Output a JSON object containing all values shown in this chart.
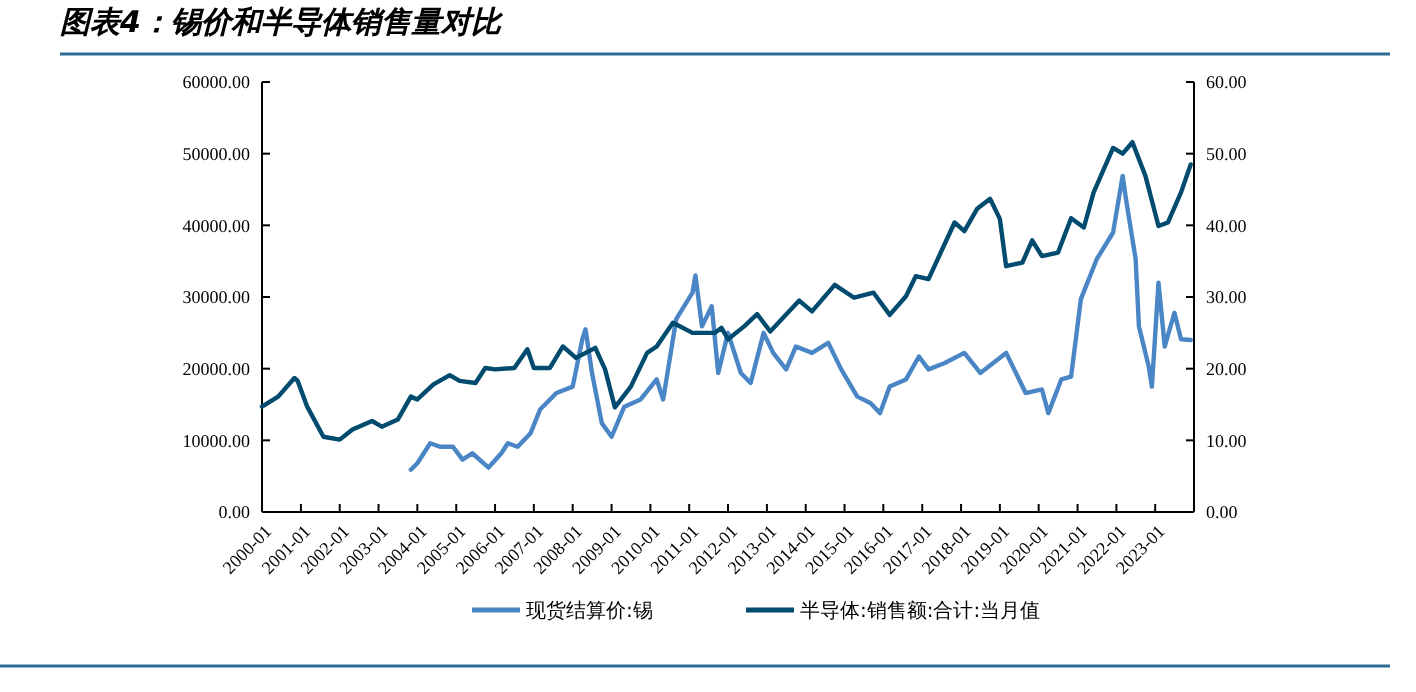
{
  "chart_data": {
    "type": "line",
    "title": "图表4：锡价和半导体销售量对比",
    "xlim": [
      "2000-01",
      "2024-01"
    ],
    "xticks": [
      "2000-01",
      "2001-01",
      "2002-01",
      "2003-01",
      "2004-01",
      "2005-01",
      "2006-01",
      "2007-01",
      "2008-01",
      "2009-01",
      "2010-01",
      "2011-01",
      "2012-01",
      "2013-01",
      "2014-01",
      "2015-01",
      "2016-01",
      "2017-01",
      "2018-01",
      "2019-01",
      "2020-01",
      "2021-01",
      "2022-01",
      "2023-01"
    ],
    "ylim": [
      0,
      60000
    ],
    "yticks": [
      {
        "value": 0,
        "label": "0.00"
      },
      {
        "value": 10000,
        "label": "10000.00"
      },
      {
        "value": 20000,
        "label": "20000.00"
      },
      {
        "value": 30000,
        "label": "30000.00"
      },
      {
        "value": 40000,
        "label": "40000.00"
      },
      {
        "value": 50000,
        "label": "50000.00"
      },
      {
        "value": 60000,
        "label": "60000.00"
      }
    ],
    "y2lim": [
      0,
      60
    ],
    "y2ticks": [
      {
        "value": 0,
        "label": "0.00"
      },
      {
        "value": 10,
        "label": "10.00"
      },
      {
        "value": 20,
        "label": "20.00"
      },
      {
        "value": 30,
        "label": "30.00"
      },
      {
        "value": 40,
        "label": "40.00"
      },
      {
        "value": 50,
        "label": "50.00"
      },
      {
        "value": 60,
        "label": "60.00"
      }
    ],
    "legend": "bottom",
    "grid": false,
    "line_style": "solid",
    "marker": "none",
    "series": [
      {
        "name": "现货结算价:锡",
        "color": "#4a86c5",
        "x": [
          "2003-11",
          "2004-01",
          "2004-05",
          "2004-08",
          "2004-12",
          "2005-03",
          "2005-06",
          "2005-11",
          "2006-03",
          "2006-05",
          "2006-08",
          "2006-12",
          "2007-03",
          "2007-08",
          "2008-01",
          "2008-04",
          "2008-05",
          "2008-07",
          "2008-10",
          "2009-01",
          "2009-05",
          "2009-10",
          "2010-03",
          "2010-05",
          "2010-09",
          "2011-02",
          "2011-03",
          "2011-05",
          "2011-08",
          "2011-10",
          "2012-01",
          "2012-05",
          "2012-08",
          "2012-12",
          "2013-03",
          "2013-07",
          "2013-10",
          "2014-03",
          "2014-08",
          "2014-12",
          "2015-05",
          "2015-09",
          "2015-12",
          "2016-03",
          "2016-08",
          "2016-12",
          "2017-03",
          "2017-08",
          "2018-02",
          "2018-07",
          "2019-03",
          "2019-09",
          "2020-02",
          "2020-04",
          "2020-08",
          "2020-11",
          "2021-02",
          "2021-07",
          "2021-12",
          "2022-03",
          "2022-04",
          "2022-07",
          "2022-08",
          "2022-11",
          "2022-12",
          "2023-02",
          "2023-04",
          "2023-07",
          "2023-09",
          "2023-12"
        ],
        "values": [
          5900,
          6800,
          9600,
          9100,
          9100,
          7300,
          8200,
          6200,
          8200,
          9600,
          9100,
          11000,
          14300,
          16600,
          17500,
          24100,
          25500,
          19400,
          12400,
          10500,
          14700,
          15700,
          18500,
          15700,
          26900,
          30600,
          33000,
          25900,
          28700,
          19400,
          25000,
          19400,
          18000,
          25000,
          22200,
          19900,
          23100,
          22200,
          23600,
          19900,
          16100,
          15200,
          13800,
          17500,
          18500,
          21700,
          19900,
          20800,
          22200,
          19400,
          22200,
          16600,
          17100,
          13800,
          18500,
          18900,
          29700,
          35300,
          39000,
          46900,
          43700,
          35300,
          25900,
          20300,
          17500,
          32000,
          23100,
          27800,
          24100,
          24000
        ]
      },
      {
        "name": "半导体:销售额:合计:当月值",
        "color": "#004b6e",
        "axis": "y2",
        "x": [
          "2000-01",
          "2000-06",
          "2000-11",
          "2000-12",
          "2001-03",
          "2001-08",
          "2002-01",
          "2002-05",
          "2002-11",
          "2003-02",
          "2003-07",
          "2003-11",
          "2004-01",
          "2004-06",
          "2004-11",
          "2005-02",
          "2005-07",
          "2005-10",
          "2006-01",
          "2006-07",
          "2006-11",
          "2007-01",
          "2007-06",
          "2007-10",
          "2008-02",
          "2008-08",
          "2008-11",
          "2009-02",
          "2009-07",
          "2009-12",
          "2010-03",
          "2010-08",
          "2011-02",
          "2011-09",
          "2011-11",
          "2012-01",
          "2012-06",
          "2012-10",
          "2013-02",
          "2013-11",
          "2014-03",
          "2014-10",
          "2015-04",
          "2015-10",
          "2016-03",
          "2016-08",
          "2016-11",
          "2017-03",
          "2017-11",
          "2018-02",
          "2018-06",
          "2018-10",
          "2019-01",
          "2019-03",
          "2019-08",
          "2019-11",
          "2020-02",
          "2020-07",
          "2020-11",
          "2021-03",
          "2021-06",
          "2021-12",
          "2022-03",
          "2022-06",
          "2022-10",
          "2023-02",
          "2023-05",
          "2023-09",
          "2023-12"
        ],
        "values": [
          14.7,
          16.1,
          18.7,
          18.3,
          14.7,
          10.5,
          10.1,
          11.5,
          12.7,
          11.9,
          12.9,
          16.1,
          15.7,
          17.8,
          19.1,
          18.3,
          18.0,
          20.1,
          19.9,
          20.1,
          22.7,
          20.1,
          20.1,
          23.1,
          21.5,
          22.9,
          19.9,
          14.6,
          17.5,
          22.2,
          23.1,
          26.4,
          25.0,
          25.0,
          25.7,
          24.1,
          25.9,
          27.6,
          25.2,
          29.5,
          28.0,
          31.7,
          29.9,
          30.6,
          27.5,
          30.1,
          32.9,
          32.5,
          40.4,
          39.2,
          42.3,
          43.7,
          40.9,
          34.3,
          34.8,
          37.9,
          35.7,
          36.2,
          41.0,
          39.7,
          44.6,
          50.8,
          50.0,
          51.6,
          46.9,
          39.9,
          40.4,
          44.6,
          48.5
        ]
      }
    ]
  }
}
